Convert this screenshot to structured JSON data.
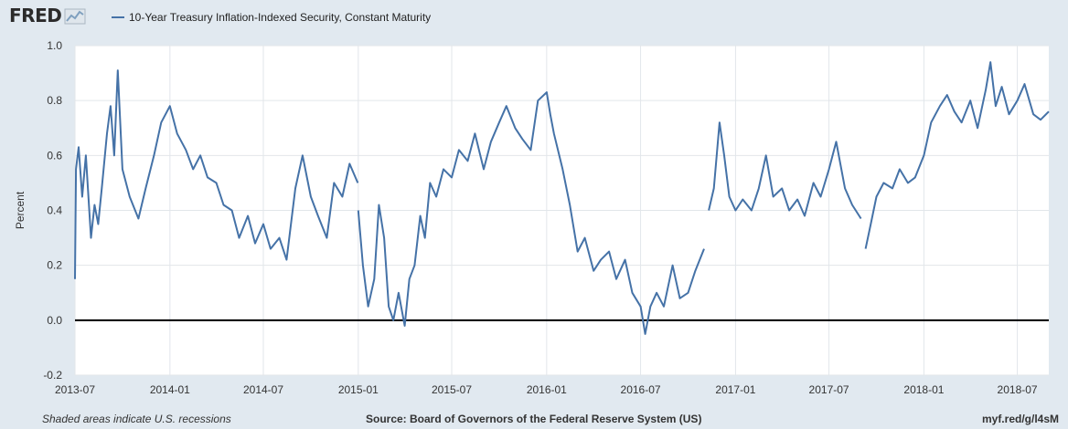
{
  "header": {
    "logo_text": "FRED",
    "logo_icon": "line-chart-icon"
  },
  "footer": {
    "note": "Shaded areas indicate U.S. recessions",
    "source": "Source: Board of Governors of the Federal Reserve System (US)",
    "link": "myf.red/g/l4sM"
  },
  "colors": {
    "series": "#4572a7",
    "background": "#e1e9f0",
    "plot_background": "#ffffff",
    "zero_line": "#000000"
  },
  "chart_data": {
    "type": "line",
    "title": "",
    "xlabel": "",
    "ylabel": "Percent",
    "ylim": [
      -0.2,
      1.0
    ],
    "yticks": [
      -0.2,
      0.0,
      0.2,
      0.4,
      0.6,
      0.8,
      1.0
    ],
    "ytick_labels": [
      "-0.2",
      "0.0",
      "0.2",
      "0.4",
      "0.6",
      "0.8",
      "1.0"
    ],
    "xlim": [
      "2013-07-01",
      "2018-08-31"
    ],
    "xticks": [
      "2013-07-01",
      "2014-01-01",
      "2014-07-01",
      "2015-01-01",
      "2015-07-01",
      "2016-01-01",
      "2016-07-01",
      "2017-01-01",
      "2017-07-01",
      "2018-01-01",
      "2018-07-01"
    ],
    "xtick_labels": [
      "2013-07",
      "2014-01",
      "2014-07",
      "2015-01",
      "2015-07",
      "2016-01",
      "2016-07",
      "2017-01",
      "2017-07",
      "2018-01",
      "2018-07"
    ],
    "grid": true,
    "legend": "top-left",
    "series": [
      {
        "name": "10-Year Treasury Inflation-Indexed Security, Constant Maturity",
        "segments": [
          {
            "x": [
              "2013-07-01",
              "2013-07-03",
              "2013-07-08",
              "2013-07-15",
              "2013-07-22",
              "2013-08-01",
              "2013-08-08",
              "2013-08-15",
              "2013-08-22",
              "2013-09-01",
              "2013-09-08",
              "2013-09-15",
              "2013-09-22",
              "2013-10-01",
              "2013-10-15",
              "2013-11-01",
              "2013-11-15",
              "2013-12-01",
              "2013-12-15",
              "2014-01-01",
              "2014-01-15",
              "2014-02-01",
              "2014-02-15",
              "2014-03-01",
              "2014-03-15",
              "2014-04-01",
              "2014-04-15",
              "2014-05-01",
              "2014-05-15",
              "2014-06-01",
              "2014-06-15",
              "2014-07-01",
              "2014-07-15",
              "2014-08-01",
              "2014-08-15",
              "2014-09-01",
              "2014-09-15",
              "2014-10-01",
              "2014-10-15",
              "2014-11-01",
              "2014-11-15",
              "2014-12-01",
              "2014-12-15",
              "2014-12-31"
            ],
            "y": [
              0.15,
              0.55,
              0.63,
              0.45,
              0.6,
              0.3,
              0.42,
              0.35,
              0.48,
              0.68,
              0.78,
              0.6,
              0.91,
              0.55,
              0.45,
              0.37,
              0.48,
              0.6,
              0.72,
              0.78,
              0.68,
              0.62,
              0.55,
              0.6,
              0.52,
              0.5,
              0.42,
              0.4,
              0.3,
              0.38,
              0.28,
              0.35,
              0.26,
              0.3,
              0.22,
              0.48,
              0.6,
              0.45,
              0.38,
              0.3,
              0.5,
              0.45,
              0.57,
              0.5
            ]
          },
          {
            "x": [
              "2015-01-01",
              "2015-01-10",
              "2015-01-20",
              "2015-02-01",
              "2015-02-10",
              "2015-02-20",
              "2015-03-01",
              "2015-03-10",
              "2015-03-20",
              "2015-04-01",
              "2015-04-10",
              "2015-04-20",
              "2015-05-01",
              "2015-05-10",
              "2015-05-20",
              "2015-06-01",
              "2015-06-15",
              "2015-07-01",
              "2015-07-15",
              "2015-08-01",
              "2015-08-15",
              "2015-09-01",
              "2015-09-15",
              "2015-10-01",
              "2015-10-15",
              "2015-11-01",
              "2015-11-15",
              "2015-12-01",
              "2015-12-15",
              "2016-01-01",
              "2016-01-08",
              "2016-01-15",
              "2016-02-01",
              "2016-02-15",
              "2016-03-01",
              "2016-03-15",
              "2016-04-01",
              "2016-04-15",
              "2016-05-01",
              "2016-05-15",
              "2016-06-01",
              "2016-06-15",
              "2016-07-01",
              "2016-07-10",
              "2016-07-20",
              "2016-08-01",
              "2016-08-15",
              "2016-09-01",
              "2016-09-15",
              "2016-10-01",
              "2016-10-15",
              "2016-11-01"
            ],
            "y": [
              0.4,
              0.2,
              0.05,
              0.15,
              0.42,
              0.3,
              0.05,
              0.0,
              0.1,
              -0.02,
              0.15,
              0.2,
              0.38,
              0.3,
              0.5,
              0.45,
              0.55,
              0.52,
              0.62,
              0.58,
              0.68,
              0.55,
              0.65,
              0.72,
              0.78,
              0.7,
              0.66,
              0.62,
              0.8,
              0.83,
              0.75,
              0.68,
              0.55,
              0.42,
              0.25,
              0.3,
              0.18,
              0.22,
              0.25,
              0.15,
              0.22,
              0.1,
              0.05,
              -0.05,
              0.05,
              0.1,
              0.05,
              0.2,
              0.08,
              0.1,
              0.18,
              0.26
            ]
          },
          {
            "x": [
              "2016-11-10",
              "2016-11-20",
              "2016-12-01",
              "2016-12-10",
              "2016-12-20",
              "2017-01-01",
              "2017-01-15",
              "2017-02-01",
              "2017-02-15",
              "2017-03-01",
              "2017-03-15",
              "2017-04-01",
              "2017-04-15",
              "2017-05-01",
              "2017-05-15",
              "2017-06-01",
              "2017-06-15",
              "2017-07-01",
              "2017-07-15",
              "2017-08-01",
              "2017-08-15",
              "2017-09-01"
            ],
            "y": [
              0.4,
              0.48,
              0.72,
              0.6,
              0.45,
              0.4,
              0.44,
              0.4,
              0.48,
              0.6,
              0.45,
              0.48,
              0.4,
              0.44,
              0.38,
              0.5,
              0.45,
              0.55,
              0.65,
              0.48,
              0.42,
              0.37
            ]
          },
          {
            "x": [
              "2017-09-10",
              "2017-09-20",
              "2017-10-01",
              "2017-10-15",
              "2017-11-01",
              "2017-11-15",
              "2017-12-01",
              "2017-12-15",
              "2018-01-01",
              "2018-01-15",
              "2018-02-01",
              "2018-02-15",
              "2018-03-01",
              "2018-03-15",
              "2018-04-01",
              "2018-04-15",
              "2018-05-01",
              "2018-05-10",
              "2018-05-20",
              "2018-06-01",
              "2018-06-15",
              "2018-07-01",
              "2018-07-15",
              "2018-08-01",
              "2018-08-15",
              "2018-08-31"
            ],
            "y": [
              0.26,
              0.35,
              0.45,
              0.5,
              0.48,
              0.55,
              0.5,
              0.52,
              0.6,
              0.72,
              0.78,
              0.82,
              0.76,
              0.72,
              0.8,
              0.7,
              0.84,
              0.94,
              0.78,
              0.85,
              0.75,
              0.8,
              0.86,
              0.75,
              0.73,
              0.76
            ]
          }
        ]
      }
    ]
  }
}
